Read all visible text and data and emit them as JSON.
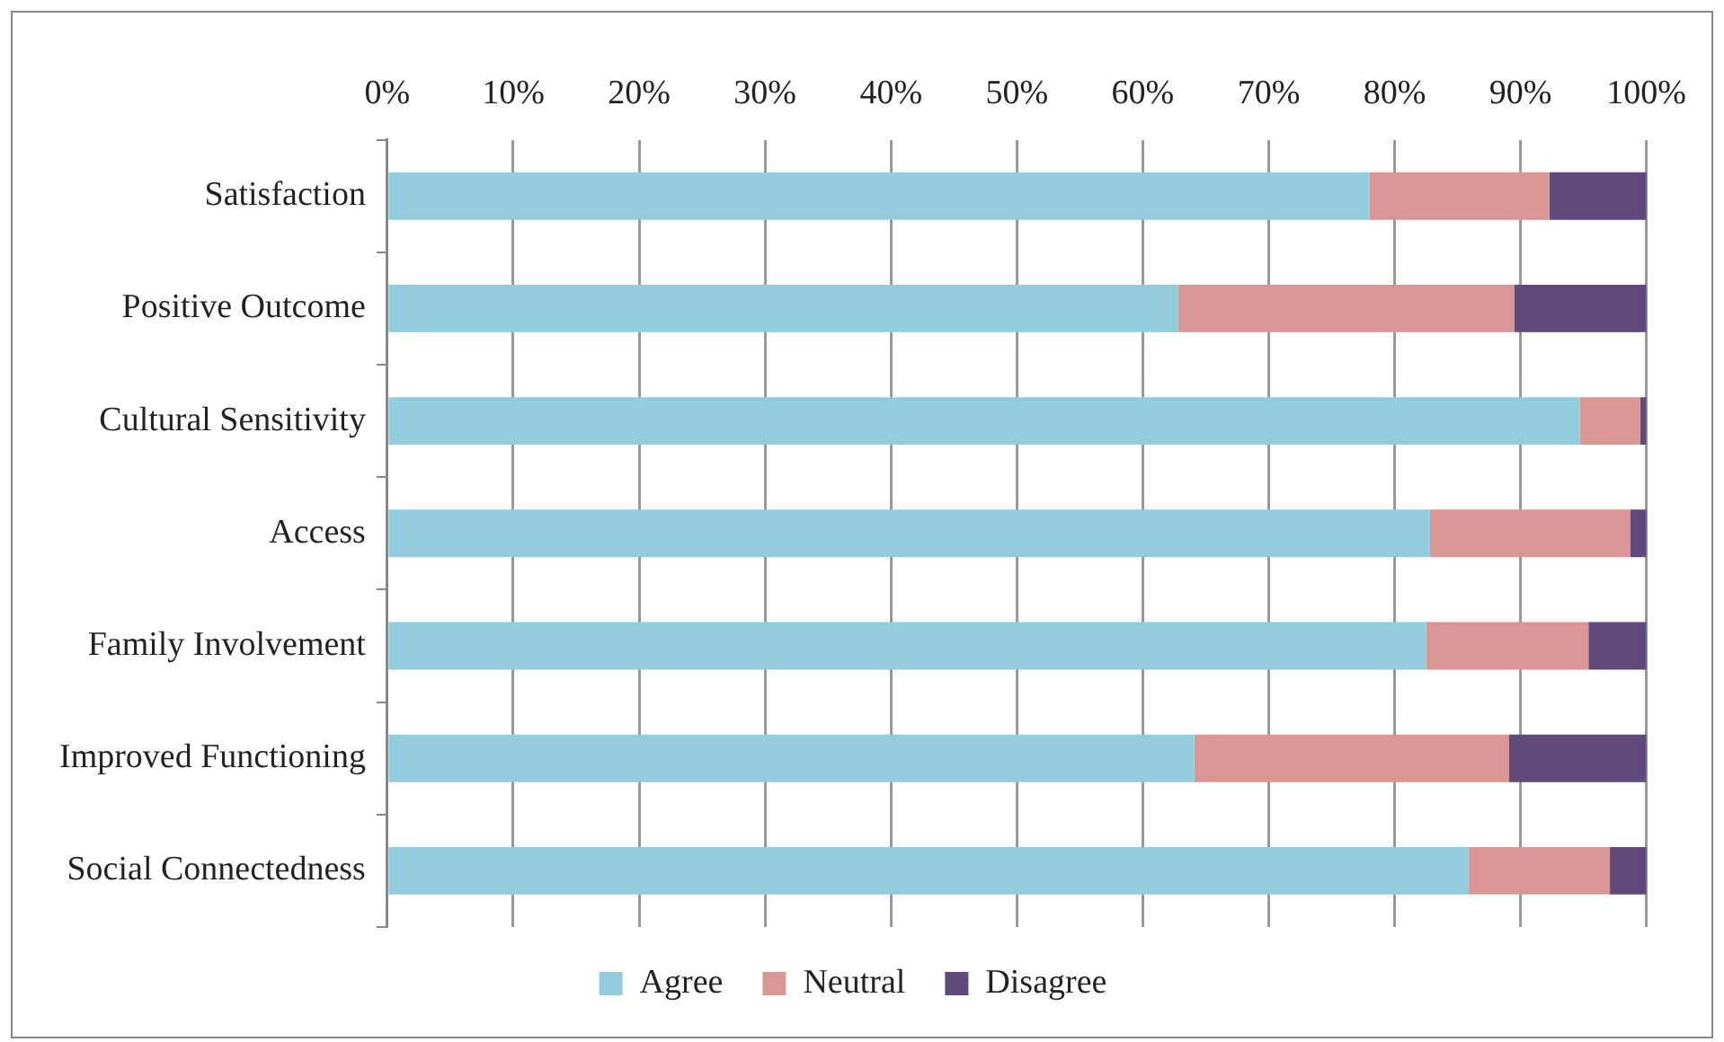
{
  "chart_data": {
    "type": "bar",
    "orientation": "horizontal",
    "stacked": true,
    "categories": [
      "Satisfaction",
      "Positive Outcome",
      "Cultural Sensitivity",
      "Access",
      "Family Involvement",
      "Improved Functioning",
      "Social Connectedness"
    ],
    "series": [
      {
        "name": "Agree",
        "color": "#93cddd",
        "values": [
          78.0,
          62.8,
          94.7,
          82.8,
          82.5,
          64.1,
          85.9
        ]
      },
      {
        "name": "Neutral",
        "color": "#d99694",
        "values": [
          14.3,
          26.7,
          4.8,
          15.9,
          12.9,
          25.0,
          11.2
        ]
      },
      {
        "name": "Disagree",
        "color": "#604a7b",
        "values": [
          7.7,
          10.5,
          0.5,
          1.3,
          4.6,
          10.9,
          2.9
        ]
      }
    ],
    "xlim": [
      0,
      100
    ],
    "xticks": [
      {
        "value": 0,
        "label": "0%"
      },
      {
        "value": 10,
        "label": "10%"
      },
      {
        "value": 20,
        "label": "20%"
      },
      {
        "value": 30,
        "label": "30%"
      },
      {
        "value": 40,
        "label": "40%"
      },
      {
        "value": 50,
        "label": "50%"
      },
      {
        "value": 60,
        "label": "60%"
      },
      {
        "value": 70,
        "label": "70%"
      },
      {
        "value": 80,
        "label": "80%"
      },
      {
        "value": 90,
        "label": "90%"
      },
      {
        "value": 100,
        "label": "100%"
      }
    ],
    "grid": "x",
    "legend": "bottom"
  }
}
